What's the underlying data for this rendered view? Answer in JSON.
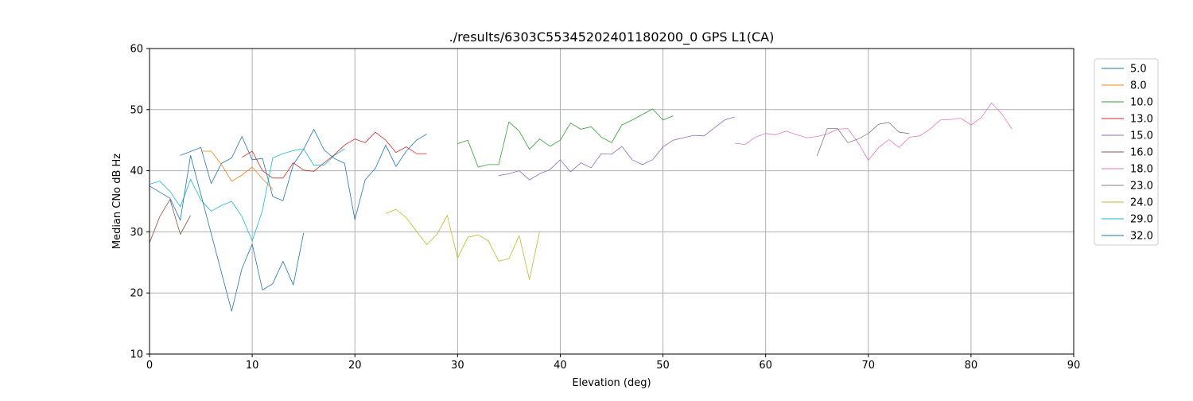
{
  "chart_data": {
    "type": "line",
    "title": "./results/6303C55345202401180200_0 GPS L1(CA)",
    "xlabel": "Elevation (deg)",
    "ylabel": "Median CNo dB Hz",
    "xlim": [
      0,
      90
    ],
    "ylim": [
      10,
      60
    ],
    "xticks": [
      0,
      10,
      20,
      30,
      40,
      50,
      60,
      70,
      80,
      90
    ],
    "yticks": [
      10,
      20,
      30,
      40,
      50,
      60
    ],
    "grid": true,
    "legend_position": "right",
    "series": [
      {
        "name": "5.0",
        "color": "#1f77b4",
        "points": [
          [
            3,
            42.5
          ],
          [
            5,
            43.8
          ],
          [
            6,
            37.9
          ],
          [
            7,
            41.2
          ],
          [
            8,
            42.1
          ],
          [
            9,
            45.6
          ],
          [
            10,
            41.8
          ],
          [
            11,
            42.0
          ],
          [
            12,
            35.8
          ],
          [
            13,
            35.1
          ],
          [
            14,
            41.0
          ],
          [
            15,
            43.5
          ],
          [
            16,
            46.8
          ],
          [
            17,
            43.4
          ],
          [
            18,
            42.0
          ],
          [
            19,
            41.2
          ],
          [
            20,
            32.0
          ],
          [
            21,
            38.5
          ],
          [
            22,
            40.4
          ],
          [
            23,
            44.2
          ],
          [
            24,
            40.7
          ],
          [
            25,
            43.2
          ],
          [
            26,
            45.0
          ],
          [
            27,
            46.0
          ]
        ]
      },
      {
        "name": "8.0",
        "color": "#ff7f0e",
        "points": [
          [
            5,
            43.2
          ],
          [
            6,
            43.2
          ],
          [
            7,
            41.0
          ],
          [
            8,
            38.3
          ],
          [
            9,
            39.3
          ],
          [
            10,
            40.6
          ],
          [
            11,
            38.7
          ],
          [
            12,
            37.0
          ]
        ]
      },
      {
        "name": "10.0",
        "color": "#2ca02c",
        "points": [
          [
            30,
            44.4
          ],
          [
            31,
            45.0
          ],
          [
            32,
            40.6
          ],
          [
            33,
            41.0
          ],
          [
            34,
            41.0
          ],
          [
            35,
            48.0
          ],
          [
            36,
            46.5
          ],
          [
            37,
            43.5
          ],
          [
            38,
            45.2
          ],
          [
            39,
            44.0
          ],
          [
            40,
            45.0
          ],
          [
            41,
            47.8
          ],
          [
            42,
            46.8
          ],
          [
            43,
            47.2
          ],
          [
            44,
            45.5
          ],
          [
            45,
            44.6
          ],
          [
            46,
            47.5
          ],
          [
            47,
            48.3
          ],
          [
            48,
            49.2
          ],
          [
            49,
            50.1
          ],
          [
            50,
            48.3
          ],
          [
            51,
            49.0
          ]
        ]
      },
      {
        "name": "13.0",
        "color": "#d62728",
        "points": [
          [
            9,
            42.2
          ],
          [
            10,
            43.2
          ],
          [
            11,
            40.0
          ],
          [
            12,
            38.8
          ],
          [
            13,
            38.8
          ],
          [
            14,
            41.3
          ],
          [
            15,
            40.1
          ],
          [
            16,
            39.9
          ],
          [
            17,
            41.3
          ],
          [
            18,
            42.6
          ],
          [
            19,
            44.2
          ],
          [
            20,
            45.2
          ],
          [
            21,
            44.6
          ],
          [
            22,
            46.3
          ],
          [
            23,
            45.0
          ],
          [
            24,
            43.0
          ],
          [
            25,
            43.9
          ],
          [
            26,
            42.8
          ],
          [
            27,
            42.8
          ]
        ]
      },
      {
        "name": "15.0",
        "color": "#9467bd",
        "points": [
          [
            34,
            39.2
          ],
          [
            35,
            39.5
          ],
          [
            36,
            40.0
          ],
          [
            37,
            38.5
          ],
          [
            38,
            39.5
          ],
          [
            39,
            40.2
          ],
          [
            40,
            41.8
          ],
          [
            41,
            39.8
          ],
          [
            42,
            41.3
          ],
          [
            43,
            40.5
          ],
          [
            44,
            42.8
          ],
          [
            45,
            42.7
          ],
          [
            46,
            44.0
          ],
          [
            47,
            41.8
          ],
          [
            48,
            41.0
          ],
          [
            49,
            41.8
          ],
          [
            50,
            43.9
          ],
          [
            51,
            45.0
          ],
          [
            52,
            45.4
          ],
          [
            53,
            45.8
          ],
          [
            54,
            45.7
          ],
          [
            55,
            47.0
          ],
          [
            56,
            48.3
          ],
          [
            57,
            48.8
          ]
        ]
      },
      {
        "name": "16.0",
        "color": "#8c564b",
        "points": [
          [
            0,
            28.2
          ],
          [
            1,
            32.5
          ],
          [
            2,
            35.3
          ],
          [
            3,
            29.6
          ],
          [
            4,
            32.7
          ]
        ]
      },
      {
        "name": "18.0",
        "color": "#e377c2",
        "points": [
          [
            57,
            44.5
          ],
          [
            58,
            44.3
          ],
          [
            59,
            45.5
          ],
          [
            60,
            46.1
          ],
          [
            61,
            45.9
          ],
          [
            62,
            46.5
          ],
          [
            63,
            45.9
          ],
          [
            64,
            45.4
          ],
          [
            65,
            45.6
          ],
          [
            66,
            46.0
          ],
          [
            67,
            46.8
          ],
          [
            68,
            46.9
          ],
          [
            69,
            44.6
          ],
          [
            70,
            41.7
          ],
          [
            71,
            43.8
          ],
          [
            72,
            45.1
          ],
          [
            73,
            43.8
          ],
          [
            74,
            45.5
          ],
          [
            75,
            45.7
          ],
          [
            76,
            46.8
          ],
          [
            77,
            48.3
          ],
          [
            78,
            48.4
          ],
          [
            79,
            48.6
          ],
          [
            80,
            47.5
          ],
          [
            81,
            48.7
          ],
          [
            82,
            51.1
          ],
          [
            83,
            49.3
          ],
          [
            84,
            46.8
          ]
        ]
      },
      {
        "name": "23.0",
        "color": "#7f7f7f",
        "points": [
          [
            65,
            42.4
          ],
          [
            66,
            46.9
          ],
          [
            67,
            46.9
          ],
          [
            68,
            44.6
          ],
          [
            69,
            45.2
          ],
          [
            70,
            46.1
          ],
          [
            71,
            47.6
          ],
          [
            72,
            47.9
          ],
          [
            73,
            46.3
          ],
          [
            74,
            46.1
          ]
        ]
      },
      {
        "name": "24.0",
        "color": "#bcbd22",
        "points": [
          [
            23,
            33.0
          ],
          [
            24,
            33.7
          ],
          [
            25,
            32.3
          ],
          [
            26,
            30.1
          ],
          [
            27,
            27.9
          ],
          [
            28,
            29.6
          ],
          [
            29,
            32.7
          ],
          [
            30,
            25.7
          ],
          [
            31,
            29.1
          ],
          [
            32,
            29.5
          ],
          [
            33,
            28.5
          ],
          [
            34,
            25.2
          ],
          [
            35,
            25.6
          ],
          [
            36,
            29.4
          ],
          [
            37,
            22.2
          ],
          [
            38,
            30.1
          ]
        ]
      },
      {
        "name": "29.0",
        "color": "#17becf",
        "points": [
          [
            0,
            37.8
          ],
          [
            1,
            38.3
          ],
          [
            2,
            36.6
          ],
          [
            3,
            34.1
          ],
          [
            4,
            38.6
          ],
          [
            5,
            35.2
          ],
          [
            6,
            33.4
          ],
          [
            7,
            34.3
          ],
          [
            8,
            35.0
          ],
          [
            9,
            32.5
          ],
          [
            10,
            28.5
          ],
          [
            11,
            33.5
          ],
          [
            12,
            42.1
          ],
          [
            13,
            42.8
          ],
          [
            14,
            43.3
          ],
          [
            15,
            43.6
          ],
          [
            16,
            40.9
          ],
          [
            17,
            40.9
          ],
          [
            18,
            42.5
          ],
          [
            19,
            43.6
          ]
        ]
      },
      {
        "name": "32.0",
        "color": "#1f77b4",
        "points": [
          [
            0,
            37.5
          ],
          [
            2,
            35.5
          ],
          [
            3,
            31.9
          ],
          [
            4,
            42.5
          ],
          [
            8,
            17.0
          ],
          [
            9,
            24.0
          ],
          [
            10,
            28.0
          ],
          [
            11,
            20.5
          ],
          [
            12,
            21.5
          ],
          [
            13,
            25.2
          ],
          [
            14,
            21.3
          ],
          [
            15,
            29.8
          ]
        ]
      }
    ]
  }
}
